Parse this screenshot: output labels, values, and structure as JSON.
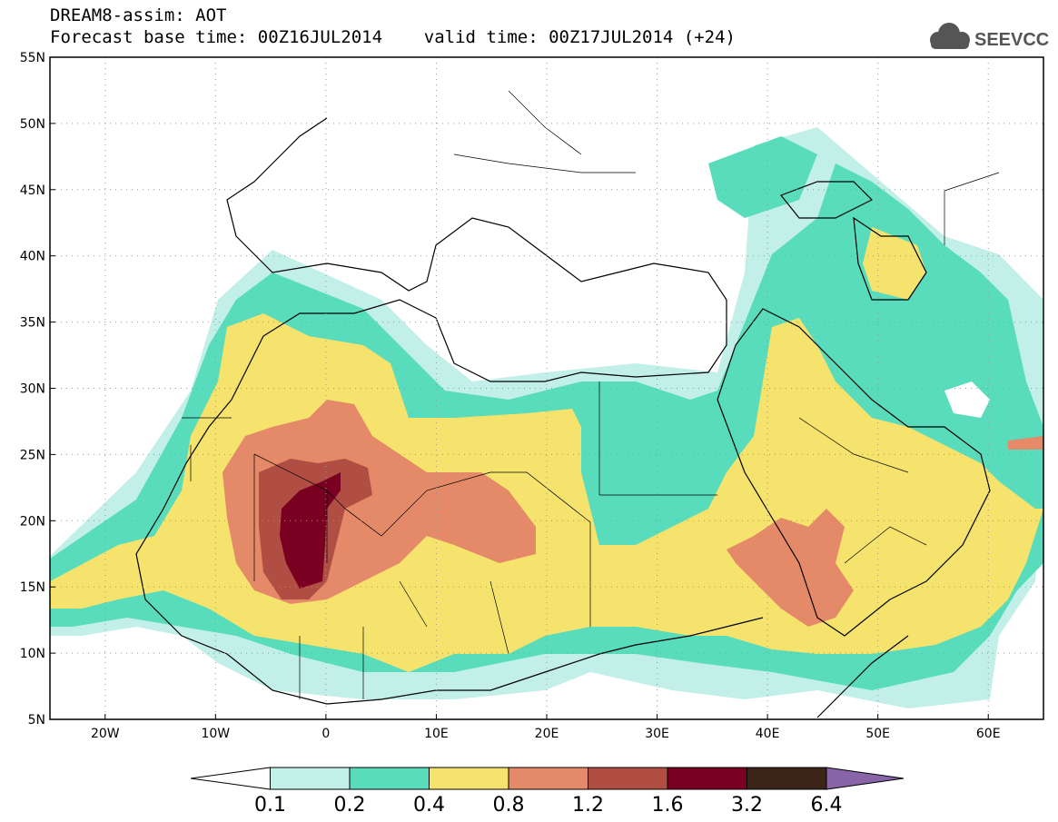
{
  "title": {
    "line1": "DREAM8-assim: AOT",
    "line2": "Forecast base time: 00Z16JUL2014    valid time: 00Z17JUL2014 (+24)"
  },
  "logo": {
    "text": "SEEVCCC",
    "icon": "cloud-icon"
  },
  "map": {
    "lat_labels": [
      "55N",
      "50N",
      "45N",
      "40N",
      "35N",
      "30N",
      "25N",
      "20N",
      "15N",
      "10N",
      "5N"
    ],
    "lon_labels": [
      "20W",
      "10W",
      "0",
      "10E",
      "20E",
      "30E",
      "40E",
      "50E",
      "60E"
    ]
  },
  "colorbar": {
    "labels": [
      "0.1",
      "0.2",
      "0.4",
      "0.8",
      "1.2",
      "1.6",
      "3.2",
      "6.4"
    ],
    "colors": [
      "#ffffff",
      "#c2efe8",
      "#58dcbc",
      "#f5e36e",
      "#e58a68",
      "#b04e43",
      "#7a0021",
      "#3c2418",
      "#8a64a8"
    ]
  }
}
